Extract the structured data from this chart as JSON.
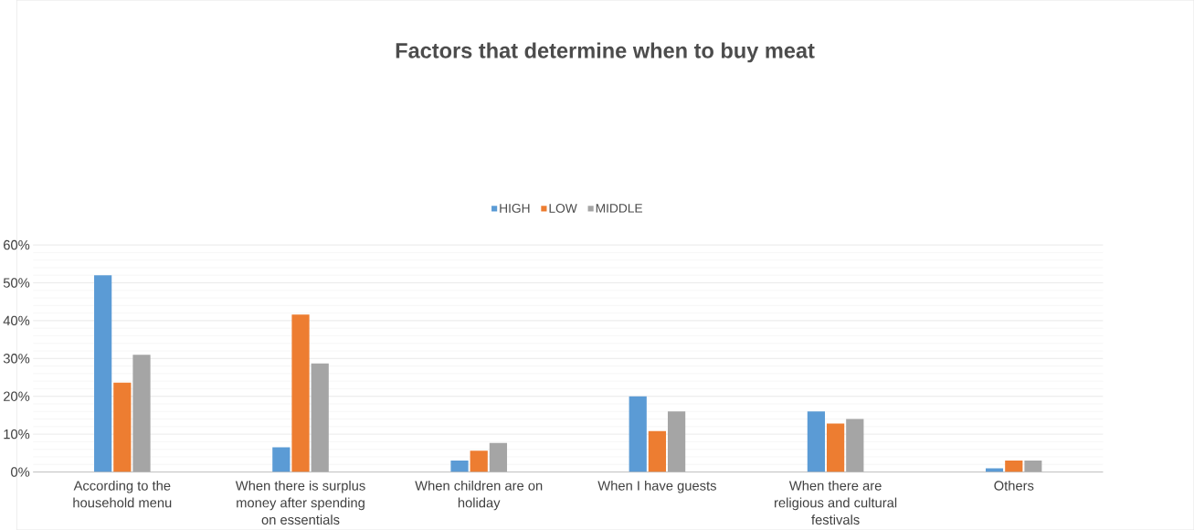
{
  "chart_data": {
    "type": "bar",
    "title": "Factors that determine when to buy meat",
    "categories": [
      "According to the household menu",
      "When there is surplus money after spending on essentials",
      "When children are on holiday",
      "When I have guests",
      "When there are religious and cultural festivals",
      "Others"
    ],
    "series": [
      {
        "name": "HIGH",
        "color": "#5b9bd5",
        "values": [
          52,
          6.5,
          3,
          20,
          16,
          1
        ]
      },
      {
        "name": "LOW",
        "color": "#ed7d31",
        "values": [
          23.6,
          41.6,
          5.6,
          10.8,
          12.8,
          3
        ]
      },
      {
        "name": "MIDDLE",
        "color": "#a5a5a5",
        "values": [
          31,
          28.7,
          7.7,
          16,
          14,
          3
        ]
      }
    ],
    "ylim": [
      0,
      60
    ],
    "yticks": [
      {
        "value": 0,
        "label": "0%"
      },
      {
        "value": 10,
        "label": "10%"
      },
      {
        "value": 20,
        "label": "20%"
      },
      {
        "value": 30,
        "label": "30%"
      },
      {
        "value": 40,
        "label": "40%"
      },
      {
        "value": 50,
        "label": "50%"
      },
      {
        "value": 60,
        "label": "60%"
      }
    ],
    "grid": "y",
    "legend": "top"
  }
}
